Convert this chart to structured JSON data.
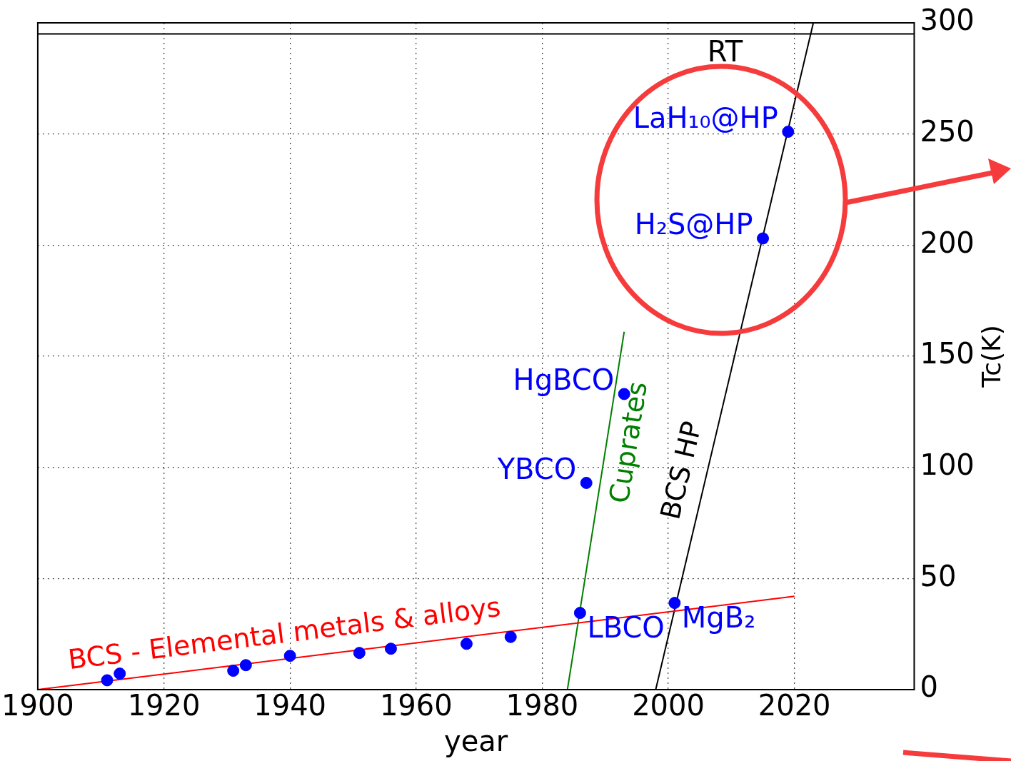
{
  "chart_data": {
    "type": "scatter",
    "xlabel": "year",
    "ylabel": "Tc(K)",
    "xlim": [
      1900,
      2039
    ],
    "ylim": [
      0,
      300
    ],
    "xticks": [
      1900,
      1920,
      1940,
      1960,
      1980,
      2000,
      2020
    ],
    "yticks": [
      0,
      50,
      100,
      150,
      200,
      250,
      300
    ],
    "grid": true,
    "legend": false,
    "marker": "circle",
    "series": [
      {
        "color": "#0000ff",
        "x": [
          1911,
          1913,
          1931,
          1933,
          1940,
          1951,
          1956,
          1968,
          1975,
          1986,
          1987,
          1993,
          2001,
          2015,
          2019
        ],
        "values": [
          4.2,
          7.2,
          8.5,
          11,
          15.2,
          16.5,
          18.4,
          20.6,
          23.7,
          34.5,
          93,
          133,
          39,
          203,
          251
        ]
      },
      {
        "type": "line",
        "name": "BCS - Elemental metals & alloys",
        "color": "#ff0000",
        "marker": "none",
        "x": [
          1900,
          2020
        ],
        "values": [
          0,
          42
        ]
      },
      {
        "type": "line",
        "name": "Cuprates",
        "color": "#008000",
        "marker": "none",
        "x": [
          1984,
          1993
        ],
        "values": [
          0,
          161
        ]
      },
      {
        "type": "line",
        "name": "BCS HP",
        "color": "#000000",
        "marker": "none",
        "x": [
          1998,
          2023
        ],
        "values": [
          0,
          300
        ]
      }
    ],
    "ref_lines": [
      {
        "axis": "y",
        "value": 295,
        "label": "RT",
        "color": "#000000"
      }
    ],
    "annotations": [
      {
        "text": "LBCO",
        "x": 1986,
        "y": 34.5
      },
      {
        "text": "YBCO",
        "x": 1987,
        "y": 93
      },
      {
        "text": "HgBCO",
        "x": 1993,
        "y": 133
      },
      {
        "text": "MgB₂",
        "x": 2001,
        "y": 39
      },
      {
        "text": "H₂S@HP",
        "x": 2015,
        "y": 203
      },
      {
        "text": "LaH₁₀@HP",
        "x": 2019,
        "y": 251
      }
    ]
  }
}
